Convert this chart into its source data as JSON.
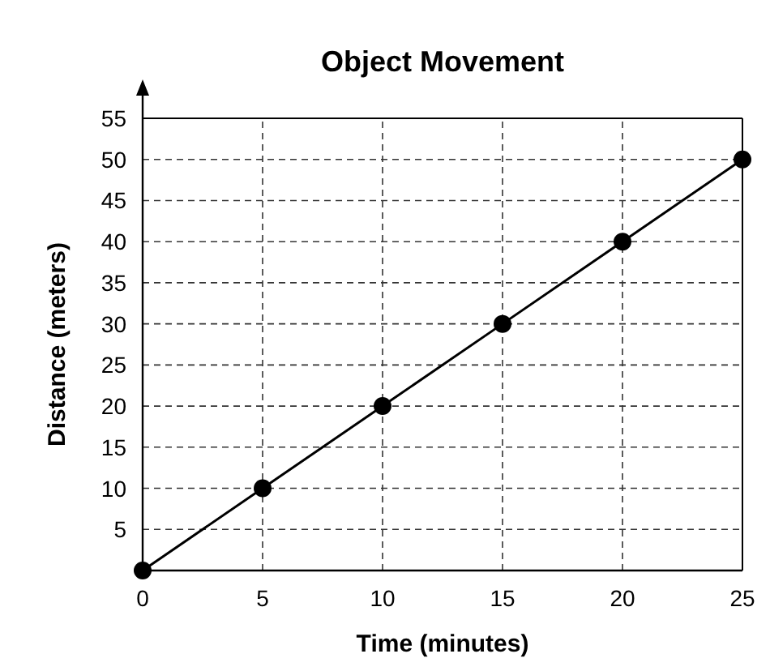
{
  "chart_data": {
    "type": "line",
    "title": "Object Movement",
    "xlabel": "Time (minutes)",
    "ylabel": "Distance (meters)",
    "x": [
      0,
      5,
      10,
      15,
      20,
      25
    ],
    "series": [
      {
        "color": "#000000",
        "values": [
          0,
          10,
          20,
          30,
          40,
          50
        ]
      }
    ],
    "xlim": [
      0,
      25
    ],
    "ylim": [
      0,
      55
    ],
    "xticks": [
      0,
      5,
      10,
      15,
      20,
      25
    ],
    "yticks": [
      5,
      10,
      15,
      20,
      25,
      30,
      35,
      40,
      45,
      50,
      55
    ],
    "grid": true,
    "marker": "circle",
    "line_style": "solid"
  }
}
